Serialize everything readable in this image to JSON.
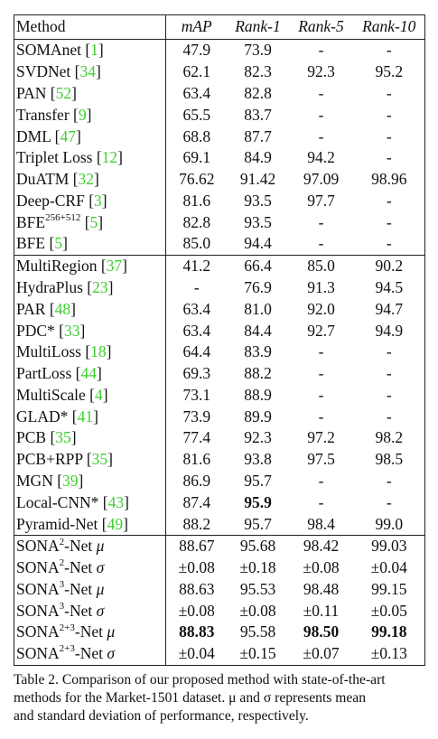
{
  "table": {
    "headers": [
      "Method",
      "mAP",
      "Rank-1",
      "Rank-5",
      "Rank-10"
    ],
    "groups": [
      [
        {
          "name": "SOMAnet",
          "ref": "1",
          "vals": [
            "47.9",
            "73.9",
            "-",
            "-"
          ]
        },
        {
          "name": "SVDNet",
          "ref": "34",
          "vals": [
            "62.1",
            "82.3",
            "92.3",
            "95.2"
          ]
        },
        {
          "name": "PAN",
          "ref": "52",
          "vals": [
            "63.4",
            "82.8",
            "-",
            "-"
          ]
        },
        {
          "name": "Transfer",
          "ref": "9",
          "vals": [
            "65.5",
            "83.7",
            "-",
            "-"
          ]
        },
        {
          "name": "DML",
          "ref": "47",
          "vals": [
            "68.8",
            "87.7",
            "-",
            "-"
          ]
        },
        {
          "name": "Triplet Loss",
          "ref": "12",
          "vals": [
            "69.1",
            "84.9",
            "94.2",
            "-"
          ]
        },
        {
          "name": "DuATM",
          "ref": "32",
          "vals": [
            "76.62",
            "91.42",
            "97.09",
            "98.96"
          ]
        },
        {
          "name": "Deep-CRF",
          "ref": "3",
          "vals": [
            "81.6",
            "93.5",
            "97.7",
            "-"
          ]
        },
        {
          "name": "BFE",
          "sup": "256+512",
          "ref": "5",
          "vals": [
            "82.8",
            "93.5",
            "-",
            "-"
          ]
        },
        {
          "name": "BFE",
          "ref": "5",
          "vals": [
            "85.0",
            "94.4",
            "-",
            "-"
          ]
        }
      ],
      [
        {
          "name": "MultiRegion",
          "ref": "37",
          "vals": [
            "41.2",
            "66.4",
            "85.0",
            "90.2"
          ]
        },
        {
          "name": "HydraPlus",
          "ref": "23",
          "vals": [
            "-",
            "76.9",
            "91.3",
            "94.5"
          ]
        },
        {
          "name": "PAR",
          "ref": "48",
          "vals": [
            "63.4",
            "81.0",
            "92.0",
            "94.7"
          ]
        },
        {
          "name": "PDC*",
          "ref": "33",
          "vals": [
            "63.4",
            "84.4",
            "92.7",
            "94.9"
          ]
        },
        {
          "name": "MultiLoss",
          "ref": "18",
          "vals": [
            "64.4",
            "83.9",
            "-",
            "-"
          ]
        },
        {
          "name": "PartLoss",
          "ref": "44",
          "vals": [
            "69.3",
            "88.2",
            "-",
            "-"
          ]
        },
        {
          "name": "MultiScale",
          "ref": "4",
          "vals": [
            "73.1",
            "88.9",
            "-",
            "-"
          ]
        },
        {
          "name": "GLAD*",
          "ref": "41",
          "vals": [
            "73.9",
            "89.9",
            "-",
            "-"
          ]
        },
        {
          "name": "PCB",
          "ref": "35",
          "vals": [
            "77.4",
            "92.3",
            "97.2",
            "98.2"
          ]
        },
        {
          "name": "PCB+RPP",
          "ref": "35",
          "vals": [
            "81.6",
            "93.8",
            "97.5",
            "98.5"
          ]
        },
        {
          "name": "MGN",
          "ref": "39",
          "vals": [
            "86.9",
            "95.7",
            "-",
            "-"
          ]
        },
        {
          "name": "Local-CNN*",
          "ref": "43",
          "vals": [
            "87.4",
            "95.9",
            "-",
            "-"
          ],
          "bold": [
            1
          ]
        },
        {
          "name": "Pyramid-Net",
          "ref": "49",
          "vals": [
            "88.2",
            "95.7",
            "98.4",
            "99.0"
          ]
        }
      ],
      [
        {
          "name": "SONA",
          "sup": "2",
          "suffix": "-Net",
          "greek": "μ",
          "vals": [
            "88.67",
            "95.68",
            "98.42",
            "99.03"
          ]
        },
        {
          "name": "SONA",
          "sup": "2",
          "suffix": "-Net",
          "greek": "σ",
          "vals": [
            "±0.08",
            "±0.18",
            "±0.08",
            "±0.04"
          ]
        },
        {
          "name": "SONA",
          "sup": "3",
          "suffix": "-Net",
          "greek": "μ",
          "vals": [
            "88.63",
            "95.53",
            "98.48",
            "99.15"
          ]
        },
        {
          "name": "SONA",
          "sup": "3",
          "suffix": "-Net",
          "greek": "σ",
          "vals": [
            "±0.08",
            "±0.08",
            "±0.11",
            "±0.05"
          ]
        },
        {
          "name": "SONA",
          "sup": "2+3",
          "suffix": "-Net",
          "greek": "μ",
          "vals": [
            "88.83",
            "95.58",
            "98.50",
            "99.18"
          ],
          "bold": [
            0,
            2,
            3
          ]
        },
        {
          "name": "SONA",
          "sup": "2+3",
          "suffix": "-Net",
          "greek": "σ",
          "vals": [
            "±0.04",
            "±0.15",
            "±0.07",
            "±0.13"
          ]
        }
      ]
    ]
  },
  "caption": {
    "line1": "Table 2. Comparison of our proposed method with state-of-the-art",
    "line2": "methods for the Market-1501 dataset.  μ and σ represents mean",
    "line3": "and standard deviation of performance, respectively."
  }
}
